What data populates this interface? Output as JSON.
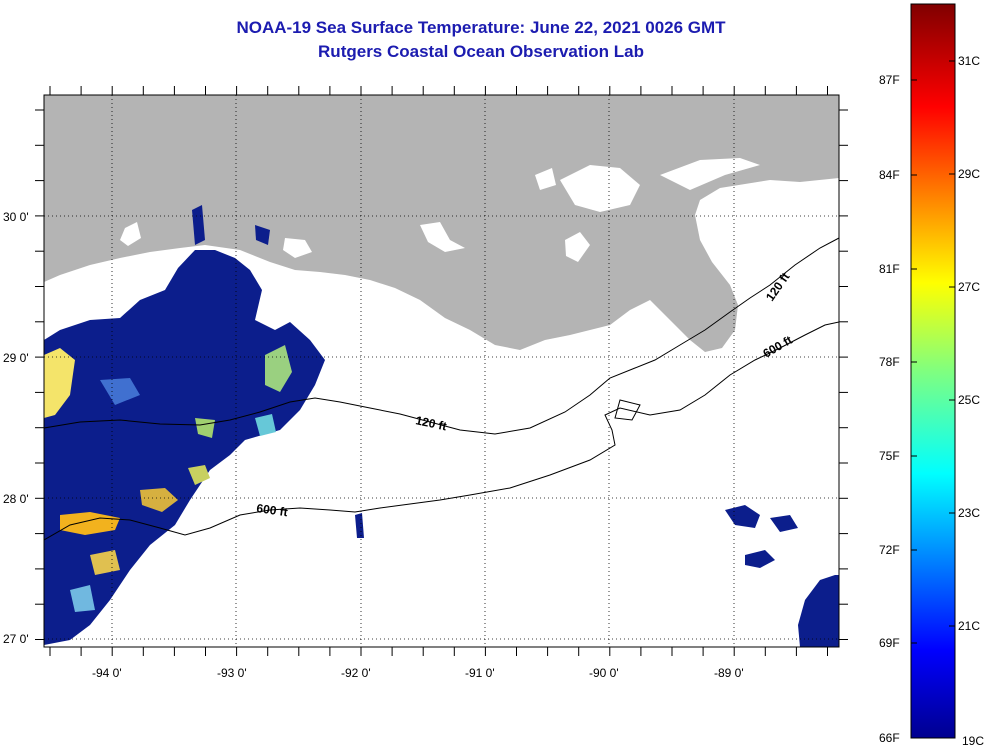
{
  "header": {
    "title": "NOAA-19 Sea Surface Temperature:  June 22, 2021 0026 GMT",
    "subtitle": "Rutgers Coastal Ocean Observation Lab"
  },
  "map": {
    "latitude_labels": [
      "30 0'",
      "29 0'",
      "28 0'",
      "27 0'"
    ],
    "longitude_labels": [
      "-94 0'",
      "-93 0'",
      "-92 0'",
      "-91 0'",
      "-90 0'",
      "-89 0'"
    ],
    "contours": [
      {
        "label": "120 ft",
        "depth_ft": 120
      },
      {
        "label": "600 ft",
        "depth_ft": 600
      },
      {
        "label": "120 ft",
        "depth_ft": 120
      },
      {
        "label": "600 ft",
        "depth_ft": 600
      }
    ],
    "colors": {
      "land": "#b4b4b4",
      "cloud": "#ffffff",
      "cold_water": "#0c1e8c",
      "title": "#1c1cb0"
    }
  },
  "colorbar": {
    "fahrenheit_labels": [
      "87F",
      "84F",
      "81F",
      "78F",
      "75F",
      "72F",
      "69F",
      "66F"
    ],
    "celsius_labels": [
      "31C",
      "29C",
      "27C",
      "25C",
      "23C",
      "21C",
      "19C"
    ],
    "scale": "jet"
  }
}
